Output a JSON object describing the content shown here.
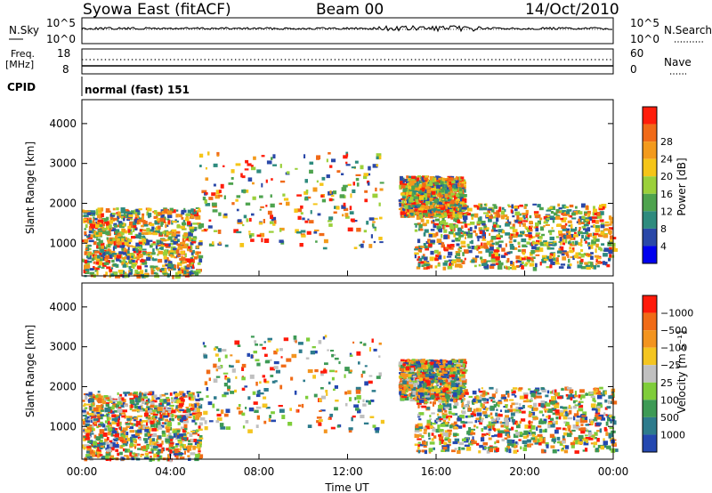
{
  "header": {
    "title": "Syowa East (fitACF)",
    "beam": "Beam 00",
    "date": "14/Oct/2010"
  },
  "top_panels": {
    "nsky_label": "N.Sky",
    "nsearch_label": "N.Search",
    "nsky_ticks": [
      "10^5",
      "10^0"
    ],
    "nsearch_ticks": [
      "10^5",
      "10^0"
    ],
    "freq_label": "Freq.",
    "freq_unit": "[MHz]",
    "freq_ticks": [
      "18",
      "8"
    ],
    "nave_label": "Nave",
    "nave_ticks": [
      "60",
      "0"
    ],
    "cpid_label": "CPID",
    "cpid_text": "normal (fast) 151"
  },
  "chart_data": [
    {
      "type": "heatmap",
      "name": "power",
      "xlabel": "",
      "ylabel": "Slant Range [km]",
      "xlim": [
        "00:00",
        "00:00"
      ],
      "ylim": [
        180,
        4600
      ],
      "yticks": [
        "1000",
        "2000",
        "3000",
        "4000"
      ],
      "colorbar": {
        "label": "Power [dB]",
        "ticks": [
          "4",
          "8",
          "12",
          "16",
          "20",
          "24",
          "28"
        ],
        "colors": [
          "#0000ee",
          "#2a48a8",
          "#2e8b7e",
          "#4ea34e",
          "#9bd03a",
          "#f5c518",
          "#f39a1c",
          "#f06a18",
          "#ff1d0b"
        ]
      },
      "regions": [
        {
          "t0": 0.0,
          "t1": 5.3,
          "r0": 200,
          "r1": 1900,
          "level": "mixed-high"
        },
        {
          "t0": 5.3,
          "t1": 13.5,
          "r0": 900,
          "r1": 3300,
          "level": "sparse-low"
        },
        {
          "t0": 14.3,
          "t1": 17.2,
          "r0": 1700,
          "r1": 2700,
          "level": "mixed"
        },
        {
          "t0": 15.0,
          "t1": 24.0,
          "r0": 400,
          "r1": 2000,
          "level": "mixed-high"
        }
      ]
    },
    {
      "type": "heatmap",
      "name": "velocity",
      "xlabel": "Time UT",
      "ylabel": "Slant Range [km]",
      "xlim": [
        "00:00",
        "00:00"
      ],
      "ylim": [
        180,
        4600
      ],
      "xticks": [
        "00:00",
        "04:00",
        "08:00",
        "12:00",
        "16:00",
        "20:00",
        "00:00"
      ],
      "yticks": [
        "1000",
        "2000",
        "3000",
        "4000"
      ],
      "colorbar": {
        "label": "Velocity [m s⁻¹]",
        "ticks": [
          "1000",
          "500",
          "100",
          "25",
          "−25",
          "−100",
          "−500",
          "−1000"
        ],
        "colors": [
          "#2448b0",
          "#2d7b8c",
          "#3d9a55",
          "#7fcd3a",
          "#c0c0c0",
          "#f4c520",
          "#f3941f",
          "#f06b17",
          "#ff1a0a"
        ]
      },
      "regions": [
        {
          "t0": 0.0,
          "t1": 5.3,
          "r0": 200,
          "r1": 1900,
          "level": "negative-green"
        },
        {
          "t0": 5.3,
          "t1": 13.5,
          "r0": 900,
          "r1": 3300,
          "level": "sparse-grey"
        },
        {
          "t0": 14.3,
          "t1": 17.2,
          "r0": 1700,
          "r1": 2700,
          "level": "grey-mixed"
        },
        {
          "t0": 15.0,
          "t1": 24.0,
          "r0": 400,
          "r1": 2000,
          "level": "green-orange"
        }
      ]
    }
  ]
}
